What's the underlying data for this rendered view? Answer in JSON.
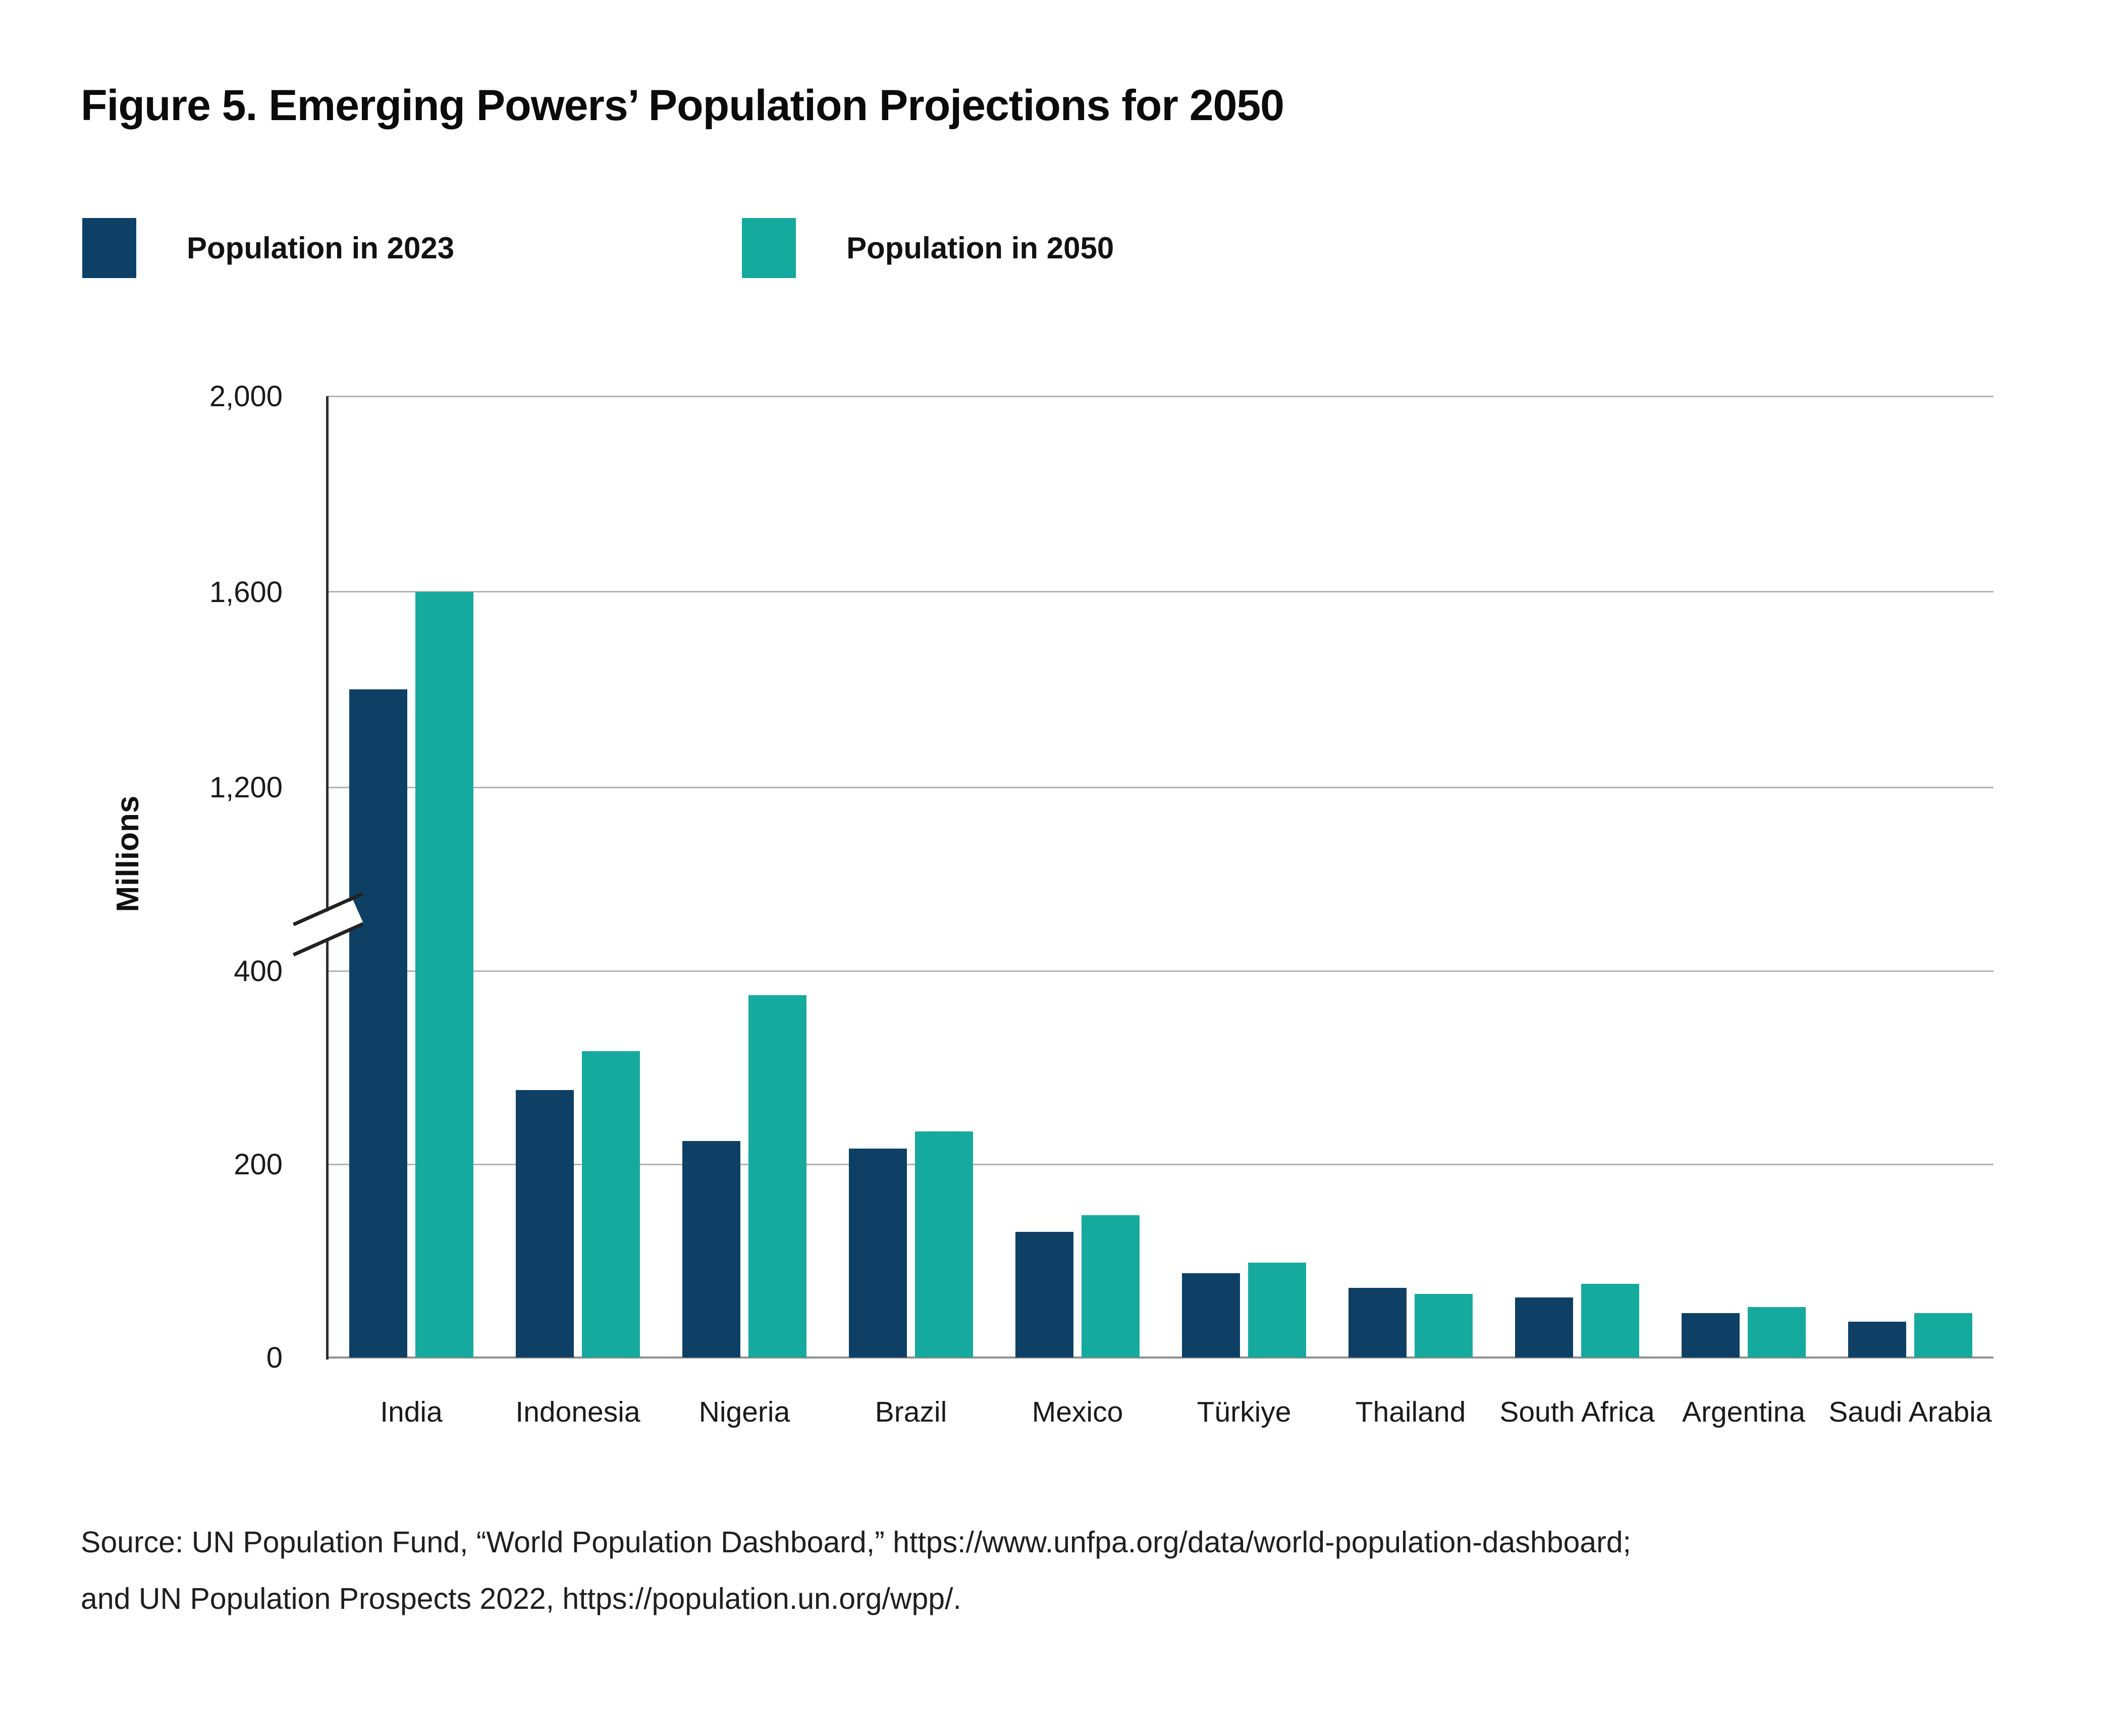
{
  "figure": {
    "title": "Figure 5. Emerging Powers’ Population Projections for 2050",
    "source_line1": "Source: UN Population Fund, “World Population Dashboard,” https://www.unfpa.org/data/world-population-dashboard;",
    "source_line2": "and UN Population Prospects 2022,  https://population.un.org/wpp/."
  },
  "chart_data": {
    "type": "bar",
    "title": "Figure 5. Emerging Powers’ Population Projections for 2050",
    "categories": [
      "India",
      "Indonesia",
      "Nigeria",
      "Brazil",
      "Mexico",
      "Türkiye",
      "Thailand",
      "South Africa",
      "Argentina",
      "Saudi Arabia"
    ],
    "series": [
      {
        "name": "Population in 2023",
        "color": "#0e4066",
        "values": [
          1400,
          277,
          224,
          216,
          130,
          87,
          72,
          62,
          46,
          37
        ]
      },
      {
        "name": "Population in 2050",
        "color": "#16a99e",
        "values": [
          1600,
          317,
          375,
          234,
          147,
          98,
          66,
          76,
          52,
          46
        ]
      }
    ],
    "xlabel": "",
    "ylabel": "Millions",
    "y_axis": {
      "unit": "millions",
      "lower_ticks": [
        0,
        200,
        400
      ],
      "upper_ticks": [
        1200,
        1600,
        2000
      ],
      "axis_break_between": [
        400,
        1200
      ],
      "tick_labels": [
        "0",
        "200",
        "400",
        "1,200",
        "1,600",
        "2,000"
      ]
    },
    "grid": true,
    "legend_position": "top-left"
  }
}
